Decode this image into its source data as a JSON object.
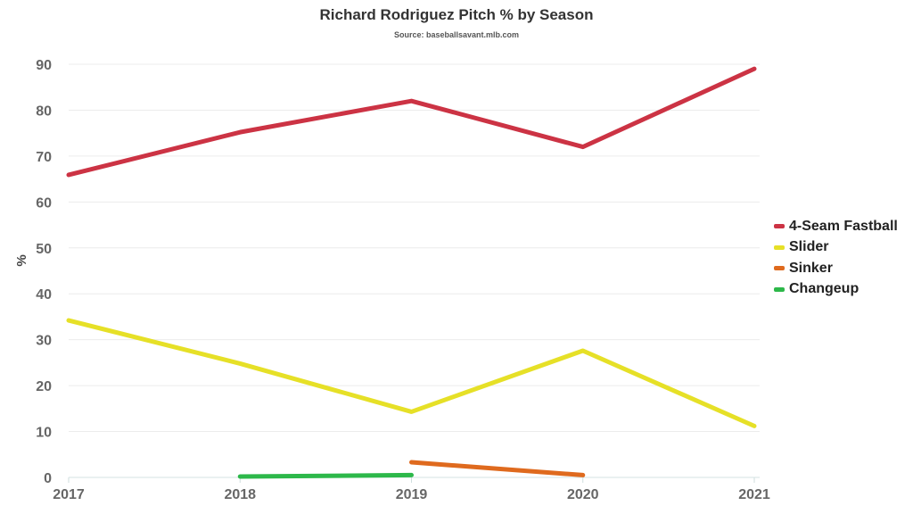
{
  "chart_data": {
    "type": "line",
    "title": "Richard Rodriguez Pitch % by Season",
    "subtitle": "Source: baseballsavant.mlb.com",
    "xlabel": "",
    "ylabel": "%",
    "categories": [
      "2017",
      "2018",
      "2019",
      "2020",
      "2021"
    ],
    "yticks": [
      0,
      10,
      20,
      30,
      40,
      50,
      60,
      70,
      80,
      90
    ],
    "ylim": [
      0,
      90
    ],
    "grid": true,
    "legend_position": "right",
    "series": [
      {
        "name": "4-Seam Fastball",
        "color": "#cc3344",
        "values": [
          65.9,
          75.2,
          82,
          72,
          89
        ]
      },
      {
        "name": "Slider",
        "color": "#e6e027",
        "values": [
          34.2,
          24.8,
          14.3,
          27.6,
          11.2
        ]
      },
      {
        "name": "Sinker",
        "color": "#df6a1e",
        "values": [
          null,
          null,
          3.3,
          0.5,
          null
        ]
      },
      {
        "name": "Changeup",
        "color": "#2db84a",
        "values": [
          null,
          0.2,
          0.5,
          null,
          null
        ]
      }
    ]
  }
}
